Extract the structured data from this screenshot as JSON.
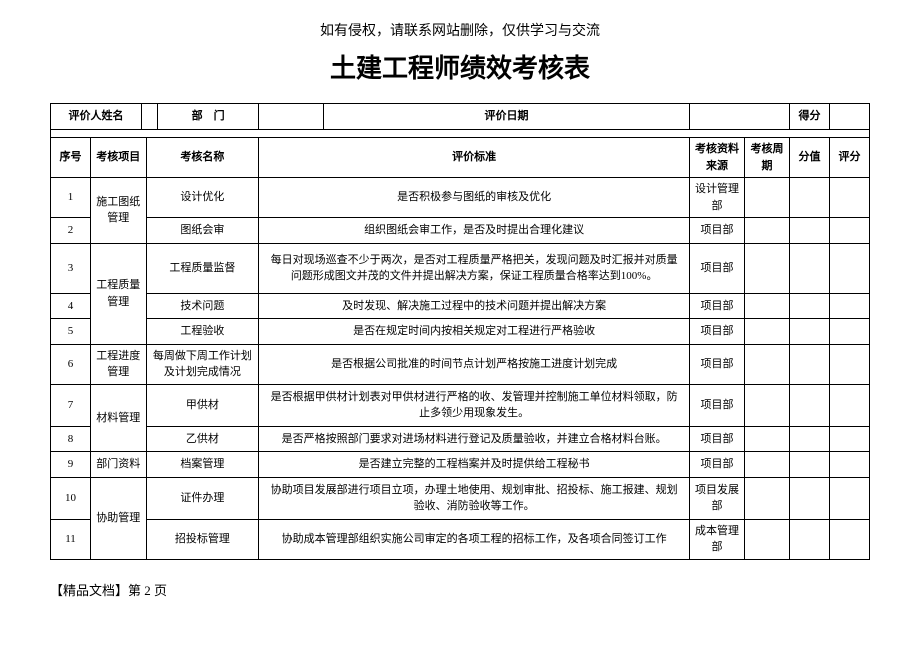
{
  "notice": "如有侵权，请联系网站删除，仅供学习与交流",
  "title": "土建工程师绩效考核表",
  "header": {
    "name_label": "评价人姓名",
    "dept_label": "部　门",
    "date_label": "评价日期",
    "score_label": "得分"
  },
  "columns": {
    "seq": "序号",
    "project": "考核项目",
    "name": "考核名称",
    "criteria": "评价标准",
    "source": "考核资料来源",
    "cycle": "考核周期",
    "value": "分值",
    "rating": "评分"
  },
  "rows": [
    {
      "seq": "1",
      "project": "施工图纸管理",
      "name": "设计优化",
      "criteria": "是否积极参与图纸的审核及优化",
      "source": "设计管理部"
    },
    {
      "seq": "2",
      "project": "",
      "name": "图纸会审",
      "criteria": "组织图纸会审工作，是否及时提出合理化建议",
      "source": "项目部"
    },
    {
      "seq": "3",
      "project": "工程质量管理",
      "name": "工程质量监督",
      "criteria": "每日对现场巡查不少于两次，是否对工程质量严格把关，发现问题及时汇报并对质量问题形成图文并茂的文件并提出解决方案，保证工程质量合格率达到100%。",
      "source": "项目部"
    },
    {
      "seq": "4",
      "project": "",
      "name": "技术问题",
      "criteria": "及时发现、解决施工过程中的技术问题并提出解决方案",
      "source": "项目部"
    },
    {
      "seq": "5",
      "project": "",
      "name": "工程验收",
      "criteria": "是否在规定时间内按相关规定对工程进行严格验收",
      "source": "项目部"
    },
    {
      "seq": "6",
      "project": "工程进度管理",
      "name": "每周做下周工作计划及计划完成情况",
      "criteria": "是否根据公司批准的时间节点计划严格按施工进度计划完成",
      "source": "项目部"
    },
    {
      "seq": "7",
      "project": "材料管理",
      "name": "甲供材",
      "criteria": "是否根据甲供材计划表对甲供材进行严格的收、发管理并控制施工单位材料领取，防止多领少用现象发生。",
      "source": "项目部"
    },
    {
      "seq": "8",
      "project": "",
      "name": "乙供材",
      "criteria": "是否严格按照部门要求对进场材料进行登记及质量验收，并建立合格材料台账。",
      "source": "项目部"
    },
    {
      "seq": "9",
      "project": "部门资料",
      "name": "档案管理",
      "criteria": "是否建立完整的工程档案并及时提供给工程秘书",
      "source": "项目部"
    },
    {
      "seq": "10",
      "project": "协助管理",
      "name": "证件办理",
      "criteria": "协助项目发展部进行项目立项，办理土地使用、规划审批、招投标、施工报建、规划验收、消防验收等工作。",
      "source": "项目发展部"
    },
    {
      "seq": "11",
      "project": "",
      "name": "招投标管理",
      "criteria": "协助成本管理部组织实施公司审定的各项工程的招标工作，及各项合同签订工作",
      "source": "成本管理部"
    }
  ],
  "footer": "【精品文档】第 2 页",
  "styling": {
    "border_color": "#000000",
    "background_color": "#ffffff",
    "text_color": "#000000",
    "title_fontsize": 26,
    "body_fontsize": 11,
    "notice_fontsize": 14,
    "footer_fontsize": 13,
    "font_family": "SimSun"
  }
}
